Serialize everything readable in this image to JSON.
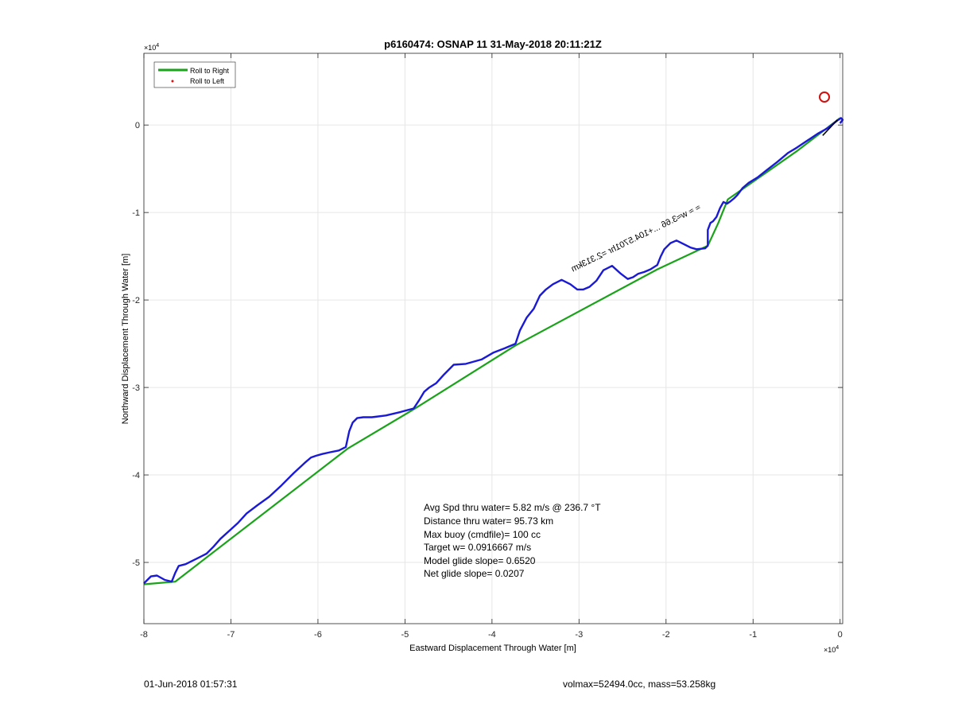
{
  "chart_data": {
    "type": "line",
    "title": "p6160474: OSNAP 11 31-May-2018 20:11:21Z",
    "xlabel": "Eastward Displacement Through Water [m]",
    "ylabel": "Northward Displacement Through Water [m]",
    "x_multiplier": "×10",
    "x_multiplier_exp": "4",
    "y_multiplier": "×10",
    "y_multiplier_exp": "4",
    "xlim": [
      -8,
      0.03
    ],
    "ylim": [
      -5.7,
      0.82
    ],
    "xticks": [
      -8,
      -7,
      -6,
      -5,
      -4,
      -3,
      -2,
      -1,
      0
    ],
    "xtick_labels": [
      "-8",
      "-7",
      "-6",
      "-5",
      "-4",
      "-3",
      "-2",
      "-1",
      "0"
    ],
    "yticks": [
      0,
      -1,
      -2,
      -3,
      -4,
      -5
    ],
    "ytick_labels": [
      "0",
      "-1",
      "-2",
      "-3",
      "-4",
      "-5"
    ],
    "grid": true,
    "legend_position": "top-left",
    "legend": [
      {
        "label": "Roll to Right",
        "color": "#1aa31a",
        "style": "line"
      },
      {
        "label": "Roll to Left",
        "color": "#e01010",
        "style": "dot"
      }
    ],
    "colors": {
      "right": "#1aa31a",
      "track": "#1a1ad6",
      "marker": "#d01010",
      "current": "#000000"
    },
    "series": [
      {
        "name": "Roll to Right",
        "x": [
          -8.0,
          -7.64,
          -5.66,
          -4.9,
          -3.73,
          -2.1,
          -1.52,
          -1.4,
          -1.29,
          -0.5,
          0.0
        ],
        "y": [
          -5.25,
          -5.22,
          -3.7,
          -3.25,
          -2.52,
          -1.65,
          -1.38,
          -1.12,
          -0.85,
          -0.3,
          0.08
        ]
      },
      {
        "x": [
          -8.0,
          -7.92,
          -7.85,
          -7.76,
          -7.68,
          -7.64,
          -7.6,
          -7.52,
          -7.44,
          -7.36,
          -7.28,
          -7.2,
          -7.12,
          -7.02,
          -6.92,
          -6.82,
          -6.7,
          -6.56,
          -6.42,
          -6.28,
          -6.15,
          -6.08,
          -6.02,
          -5.95,
          -5.86,
          -5.76,
          -5.68,
          -5.64,
          -5.6,
          -5.55,
          -5.48,
          -5.38,
          -5.22,
          -5.05,
          -4.9,
          -4.84,
          -4.78,
          -4.72,
          -4.64,
          -4.55,
          -4.44,
          -4.3,
          -4.12,
          -3.98,
          -3.85,
          -3.73,
          -3.68,
          -3.6,
          -3.52,
          -3.45,
          -3.38,
          -3.3,
          -3.2,
          -3.1,
          -3.02,
          -2.95,
          -2.88,
          -2.8,
          -2.72,
          -2.62,
          -2.52,
          -2.44,
          -2.38,
          -2.32,
          -2.25,
          -2.18,
          -2.1,
          -2.06,
          -2.02,
          -1.95,
          -1.88,
          -1.8,
          -1.72,
          -1.65,
          -1.55,
          -1.52,
          -1.52,
          -1.49,
          -1.46,
          -1.42,
          -1.38,
          -1.34,
          -1.3,
          -1.27,
          -1.22,
          -1.18,
          -1.12,
          -1.05,
          -0.95,
          -0.85,
          -0.72,
          -0.6,
          -0.5,
          -0.38,
          -0.26,
          -0.15,
          -0.06,
          -0.02,
          0.01,
          0.03,
          0.0
        ],
        "y": [
          -5.24,
          -5.16,
          -5.15,
          -5.2,
          -5.22,
          -5.12,
          -5.04,
          -5.02,
          -4.98,
          -4.94,
          -4.9,
          -4.82,
          -4.73,
          -4.64,
          -4.55,
          -4.44,
          -4.35,
          -4.25,
          -4.12,
          -3.98,
          -3.86,
          -3.8,
          -3.78,
          -3.76,
          -3.74,
          -3.72,
          -3.68,
          -3.5,
          -3.4,
          -3.35,
          -3.34,
          -3.34,
          -3.32,
          -3.28,
          -3.24,
          -3.15,
          -3.05,
          -3.0,
          -2.95,
          -2.85,
          -2.74,
          -2.73,
          -2.68,
          -2.6,
          -2.55,
          -2.5,
          -2.35,
          -2.2,
          -2.1,
          -1.95,
          -1.88,
          -1.82,
          -1.77,
          -1.82,
          -1.88,
          -1.88,
          -1.85,
          -1.78,
          -1.66,
          -1.61,
          -1.7,
          -1.76,
          -1.74,
          -1.7,
          -1.68,
          -1.65,
          -1.6,
          -1.5,
          -1.42,
          -1.35,
          -1.32,
          -1.36,
          -1.4,
          -1.42,
          -1.41,
          -1.38,
          -1.2,
          -1.12,
          -1.1,
          -1.05,
          -0.95,
          -0.88,
          -0.9,
          -0.88,
          -0.84,
          -0.8,
          -0.72,
          -0.66,
          -0.6,
          -0.52,
          -0.42,
          -0.32,
          -0.26,
          -0.18,
          -0.1,
          -0.04,
          0.03,
          0.06,
          0.08,
          0.06,
          0.02
        ]
      }
    ],
    "current_marker": {
      "x": -0.18,
      "y": 0.32
    },
    "track_annotation": "≈ ≈ w≈3.66 ...+104.5701hr =2.313km",
    "stats": [
      "Avg Spd thru water=  5.82 m/s @ 236.7 °T",
      "Distance thru water= 95.73 km",
      "Max buoy (cmdfile)= 100 cc",
      "Target w= 0.0916667 m/s",
      "Model glide slope= 0.6520",
      "Net glide slope= 0.0207"
    ]
  },
  "footer": {
    "timestamp": "01-Jun-2018 01:57:31",
    "vol_mass": "volmax=52494.0cc, mass=53.258kg"
  }
}
